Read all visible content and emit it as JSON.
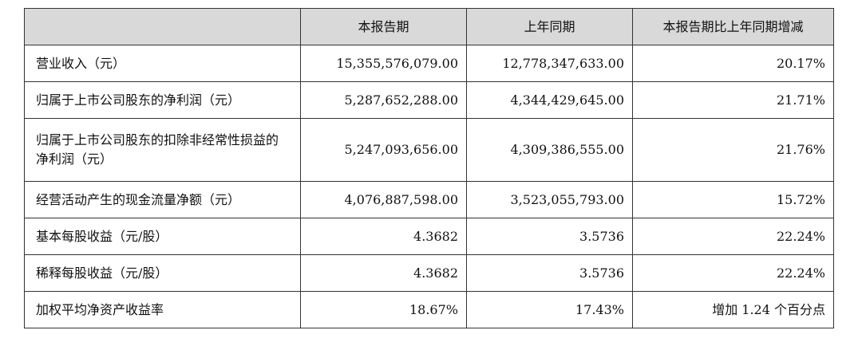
{
  "table": {
    "headers": [
      "",
      "本报告期",
      "上年同期",
      "本报告期比上年同期增减"
    ],
    "rows": [
      {
        "label": "营业收入（元）",
        "current": "15,355,576,079.00",
        "prior": "12,778,347,633.00",
        "change": "20.17%"
      },
      {
        "label": "归属于上市公司股东的净利润（元）",
        "current": "5,287,652,288.00",
        "prior": "4,344,429,645.00",
        "change": "21.71%"
      },
      {
        "label": "归属于上市公司股东的扣除非经常性损益的净利润（元）",
        "current": "5,247,093,656.00",
        "prior": "4,309,386,555.00",
        "change": "21.76%"
      },
      {
        "label": "经营活动产生的现金流量净额（元）",
        "current": "4,076,887,598.00",
        "prior": "3,523,055,793.00",
        "change": "15.72%"
      },
      {
        "label": "基本每股收益（元/股）",
        "current": "4.3682",
        "prior": "3.5736",
        "change": "22.24%"
      },
      {
        "label": "稀释每股收益（元/股）",
        "current": "4.3682",
        "prior": "3.5736",
        "change": "22.24%"
      },
      {
        "label": "加权平均净资产收益率",
        "current": "18.67%",
        "prior": "17.43%",
        "change": "增加 1.24 个百分点"
      }
    ]
  }
}
